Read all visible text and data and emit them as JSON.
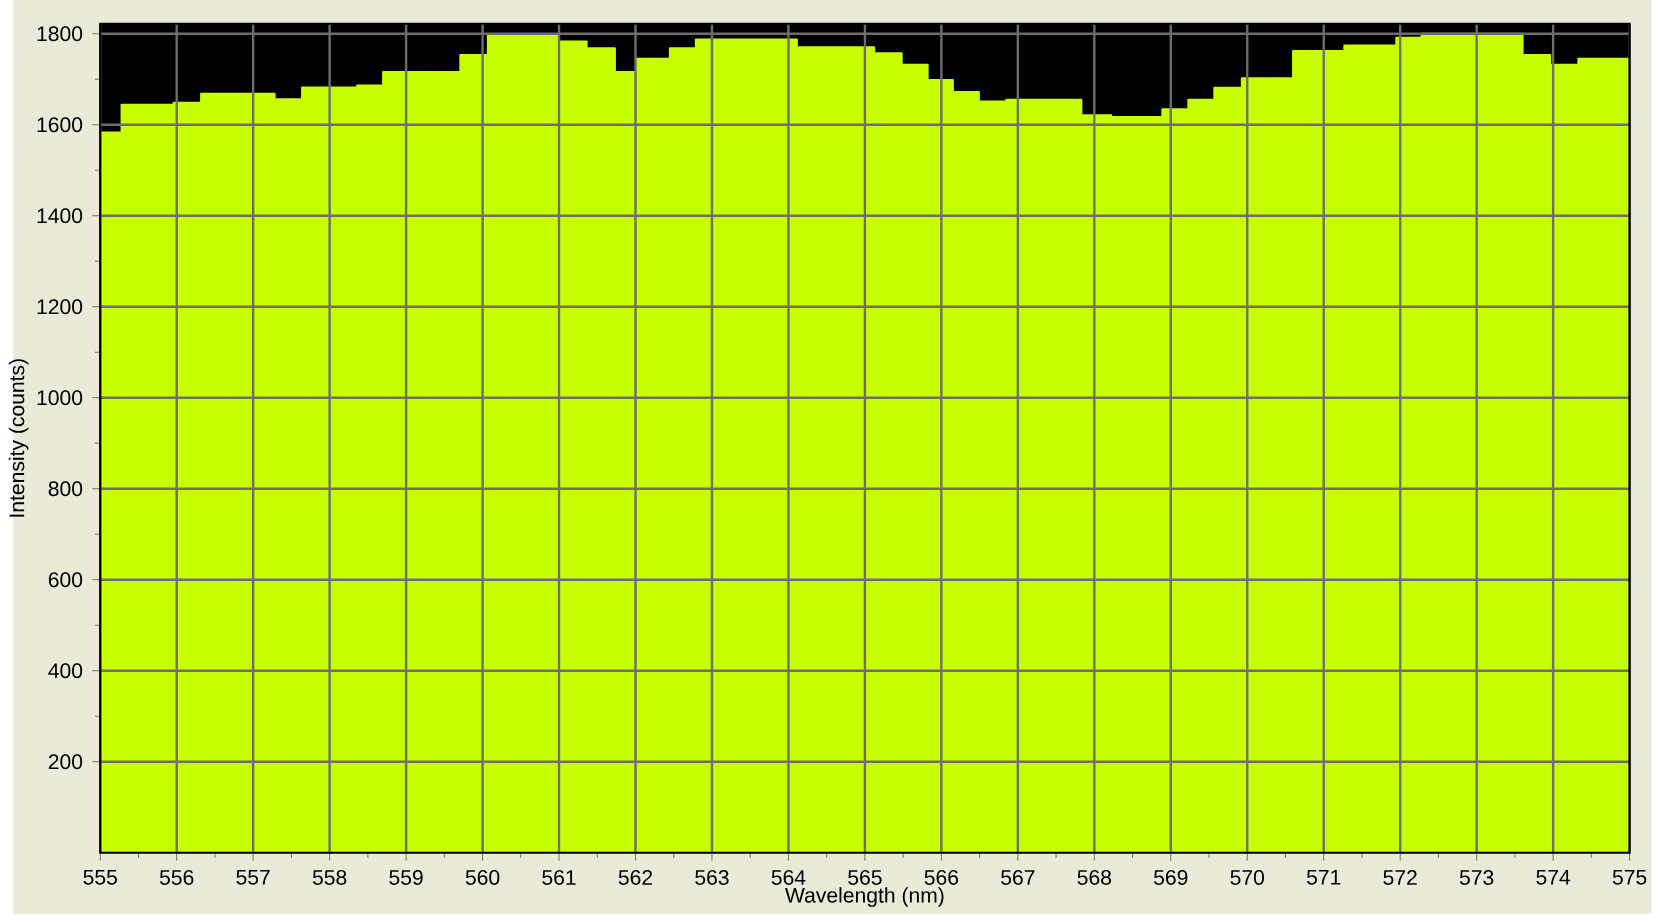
{
  "chart_data": {
    "type": "step",
    "xlabel": "Wavelength (nm)",
    "ylabel": "Intensity (counts)",
    "x": [
      555,
      555.28,
      555.96,
      556.32,
      557.28,
      557.64,
      558.36,
      558.7,
      559.71,
      560.07,
      561.0,
      561.36,
      561.73,
      562.01,
      562.45,
      562.79,
      564.11,
      565.12,
      565.48,
      565.82,
      566.15,
      566.49,
      566.85,
      567.83,
      568.22,
      568.89,
      569.23,
      569.57,
      569.93,
      570.6,
      571.27,
      571.95,
      572.28,
      573.6,
      573.96,
      574.33,
      575
    ],
    "series": [
      {
        "color": "#c8ff00",
        "values": [
          1583,
          1644,
          1648,
          1668,
          1656,
          1682,
          1686,
          1716,
          1753,
          1797,
          1783,
          1768,
          1716,
          1745,
          1768,
          1787,
          1770,
          1757,
          1732,
          1698,
          1672,
          1651,
          1655,
          1621,
          1617,
          1634,
          1655,
          1681,
          1702,
          1762,
          1774,
          1791,
          1800,
          1753,
          1732,
          1745,
          1745
        ]
      }
    ],
    "xlim": [
      555,
      575
    ],
    "ylim": [
      0,
      1822
    ],
    "xticks": [
      555,
      556,
      557,
      558,
      559,
      560,
      561,
      562,
      563,
      564,
      565,
      566,
      567,
      568,
      569,
      570,
      571,
      572,
      573,
      574,
      575
    ],
    "yticks": [
      200,
      400,
      600,
      800,
      1000,
      1200,
      1400,
      1600,
      1800
    ],
    "grid": true
  }
}
